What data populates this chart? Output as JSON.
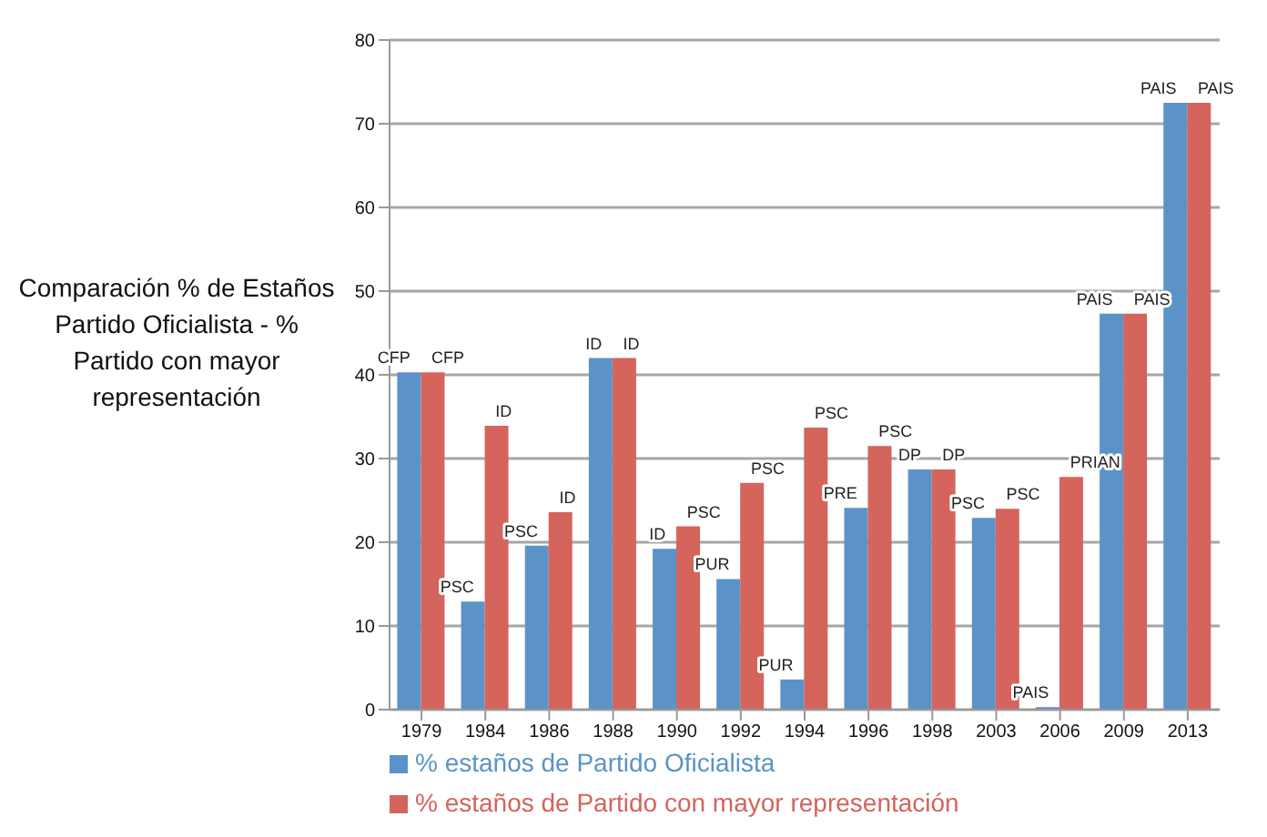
{
  "chart_data": {
    "type": "bar",
    "ylabel": "Comparación % de Estaños Partido Oficialista - % Partido con mayor representación",
    "categories": [
      "1979",
      "1984",
      "1986",
      "1988",
      "1990",
      "1992",
      "1994",
      "1996",
      "1998",
      "2003",
      "2006",
      "2009",
      "2013"
    ],
    "series": [
      {
        "name": "% estaños de Partido Oficialista",
        "color": "#5b93c9",
        "values": [
          40.3,
          12.9,
          19.6,
          42,
          19.2,
          15.6,
          3.6,
          24.1,
          28.7,
          22.9,
          0.3,
          47.3,
          72.5
        ],
        "value_labels": [
          "CFP",
          "PSC",
          "PSC",
          "ID",
          "ID",
          "PUR",
          "PUR",
          "PRE",
          "DP",
          "PSC",
          "PAIS",
          "PAIS",
          "PAIS"
        ]
      },
      {
        "name": "% estaños de Partido con mayor representación",
        "color": "#d4645c",
        "values": [
          40.3,
          33.9,
          23.6,
          42,
          21.9,
          27.1,
          33.7,
          31.5,
          28.7,
          24,
          27.8,
          47.3,
          72.5
        ],
        "value_labels": [
          "CFP",
          "ID",
          "ID",
          "ID",
          "PSC",
          "PSC",
          "PSC",
          "PSC",
          "DP",
          "PSC",
          "PRIAN",
          "PAIS",
          "PAIS"
        ]
      }
    ],
    "ylim": [
      0,
      80
    ],
    "yticks": [
      0,
      10,
      20,
      30,
      40,
      50,
      60,
      70,
      80
    ],
    "grid": "y",
    "legend": "bottom"
  }
}
